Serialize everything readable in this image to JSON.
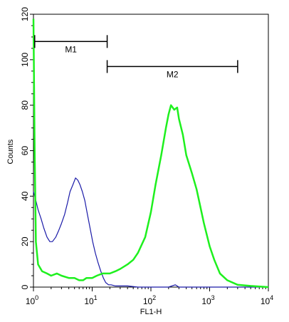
{
  "chart_data": {
    "type": "line",
    "xlabel": "FL1-H",
    "ylabel": "Counts",
    "x_scale": "log",
    "xlim": [
      1,
      10000
    ],
    "ylim": [
      0,
      120
    ],
    "grid": false,
    "x_ticks": [
      {
        "value": 1,
        "base": "10",
        "exp": "0"
      },
      {
        "value": 10,
        "base": "10",
        "exp": "1"
      },
      {
        "value": 100,
        "base": "10",
        "exp": "2"
      },
      {
        "value": 1000,
        "base": "10",
        "exp": "3"
      },
      {
        "value": 10000,
        "base": "10",
        "exp": "4"
      }
    ],
    "y_ticks": [
      "0",
      "20",
      "40",
      "60",
      "80",
      "100",
      "120"
    ],
    "series": [
      {
        "color": "#1a1aa8",
        "x": [
          1,
          1.1,
          1.2,
          1.35,
          1.5,
          1.7,
          1.9,
          2.1,
          2.4,
          2.7,
          3.0,
          3.4,
          3.8,
          4.2,
          4.7,
          5.2,
          5.7,
          6.2,
          6.8,
          7.5,
          8.3,
          9.2,
          10.2,
          11.3,
          12.5,
          14,
          15.5,
          17,
          19,
          21,
          25,
          30,
          40,
          60,
          100,
          200,
          260,
          300,
          500,
          1000,
          3000,
          10000
        ],
        "y": [
          42,
          38,
          34,
          30,
          26,
          22,
          20,
          20,
          22,
          25,
          28,
          32,
          37,
          42,
          45,
          48,
          47,
          45,
          42,
          38,
          32,
          26,
          20,
          15,
          11,
          7,
          4,
          2,
          1,
          1,
          0.5,
          0.5,
          0.5,
          0,
          0,
          0,
          1,
          0,
          0,
          0,
          0,
          0
        ]
      },
      {
        "color": "#1ef01e",
        "x": [
          1,
          1.05,
          1.1,
          1.2,
          1.4,
          1.7,
          2,
          2.5,
          3,
          4,
          5,
          6,
          7,
          8,
          10,
          12,
          15,
          20,
          25,
          30,
          40,
          50,
          60,
          80,
          100,
          120,
          150,
          180,
          200,
          220,
          250,
          280,
          300,
          350,
          400,
          500,
          600,
          700,
          800,
          1000,
          1200,
          1500,
          2000,
          3000,
          5000,
          10000
        ],
        "y": [
          118,
          60,
          20,
          10,
          7,
          6,
          5,
          6,
          5,
          4,
          4,
          3,
          3,
          4,
          4,
          5,
          6,
          6,
          7,
          8,
          10,
          12,
          15,
          22,
          33,
          45,
          58,
          70,
          76,
          80,
          78,
          79,
          74,
          67,
          58,
          50,
          43,
          35,
          28,
          18,
          12,
          6,
          3,
          1,
          0.5,
          0
        ]
      }
    ],
    "markers": [
      {
        "label": "M1",
        "x_start": 1.05,
        "x_end": 18,
        "y": 108
      },
      {
        "label": "M2",
        "x_start": 18,
        "x_end": 3000,
        "y": 97
      }
    ]
  }
}
